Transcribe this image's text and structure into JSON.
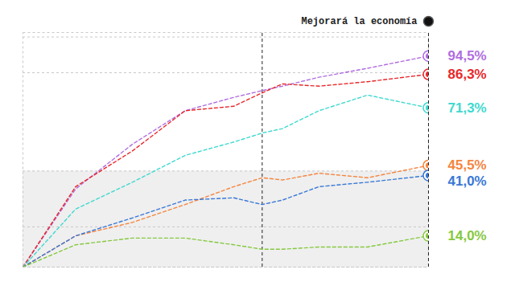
{
  "chart_data": {
    "type": "line",
    "title": "Mejorará la economía",
    "x": [
      0,
      13,
      27,
      40,
      52,
      59,
      64,
      73,
      85,
      100
    ],
    "xlim": [
      0,
      100
    ],
    "ylim": [
      0,
      105
    ],
    "yticks": [
      0,
      18,
      43,
      87,
      103
    ],
    "grid": true,
    "tick_labels": false,
    "line_style": "dashed",
    "vlines": [
      59,
      100
    ],
    "shaded_band": [
      0,
      43
    ],
    "series": [
      {
        "color": "#b06ee0",
        "values": [
          0,
          35,
          55,
          70,
          76,
          79,
          81,
          85,
          89,
          94.5
        ],
        "value_labels": [
          null,
          null,
          null,
          null,
          null,
          null,
          null,
          null,
          null,
          "94,5%"
        ]
      },
      {
        "color": "#e8282b",
        "values": [
          0,
          36,
          52,
          70,
          72,
          78,
          82,
          81,
          83,
          86.3
        ],
        "value_labels": [
          null,
          null,
          null,
          null,
          null,
          null,
          null,
          null,
          null,
          "86,3%"
        ]
      },
      {
        "color": "#3fd9cf",
        "values": [
          0,
          26,
          38,
          50,
          56,
          60,
          62,
          70,
          77,
          71.3
        ],
        "value_labels": [
          null,
          null,
          null,
          null,
          null,
          null,
          null,
          null,
          null,
          "71,3%"
        ]
      },
      {
        "color": "#f5853f",
        "values": [
          0,
          14,
          20,
          28,
          36,
          40,
          39,
          42,
          40,
          45.5
        ],
        "value_labels": [
          null,
          null,
          null,
          null,
          null,
          null,
          null,
          null,
          null,
          "45,5%"
        ]
      },
      {
        "color": "#3a78d6",
        "values": [
          0,
          14,
          22,
          30,
          31,
          28,
          30,
          36,
          38,
          41
        ],
        "value_labels": [
          null,
          null,
          null,
          null,
          null,
          null,
          null,
          null,
          null,
          "41,0%"
        ]
      },
      {
        "color": "#86c940",
        "values": [
          0,
          10,
          13,
          13,
          10,
          8,
          8,
          9,
          9,
          14
        ],
        "value_labels": [
          null,
          null,
          null,
          null,
          null,
          null,
          null,
          null,
          null,
          "14,0%"
        ]
      }
    ]
  }
}
